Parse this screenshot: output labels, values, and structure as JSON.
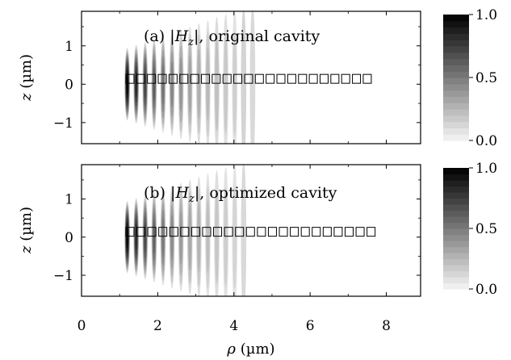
{
  "chart_data": [
    {
      "type": "heatmap",
      "title": "(a) |H_z|, original cavity",
      "title_parts": {
        "prefix": "(a) |",
        "var": "H",
        "sub": "z",
        "suffix": "|, original cavity"
      },
      "xlabel": "ρ (µm)",
      "ylabel": "z (µm)",
      "xlim": [
        0,
        8.9
      ],
      "ylim": [
        -1.55,
        1.9
      ],
      "x_ticks": [
        "0",
        "2",
        "4",
        "6",
        "8"
      ],
      "y_ticks": [
        "1",
        "0",
        "−1"
      ],
      "colorbar": {
        "min": 0.0,
        "max": 1.0,
        "levels": 20,
        "ticks": [
          "1.0",
          "0.5",
          "0.0"
        ],
        "colormap": "greys"
      },
      "field_peak_rho": 1.2,
      "field_extent_rho": 4.6,
      "hole_count": 23,
      "holes_start_rho": 1.27,
      "holes_end_rho": 7.5
    },
    {
      "type": "heatmap",
      "title": "(b) |H_z|, optimized cavity",
      "title_parts": {
        "prefix": "(b) |",
        "var": "H",
        "sub": "z",
        "suffix": "|, optimized cavity"
      },
      "xlabel": "ρ (µm)",
      "ylabel": "z (µm)",
      "xlim": [
        0,
        8.9
      ],
      "ylim": [
        -1.55,
        1.9
      ],
      "x_ticks": [
        "0",
        "2",
        "4",
        "6",
        "8"
      ],
      "y_ticks": [
        "1",
        "0",
        "−1"
      ],
      "colorbar": {
        "min": 0.0,
        "max": 1.0,
        "levels": 20,
        "ticks": [
          "1.0",
          "0.5",
          "0.0"
        ],
        "colormap": "greys"
      },
      "field_peak_rho": 1.2,
      "field_extent_rho": 4.4,
      "hole_count": 23,
      "holes_start_rho": 1.27,
      "holes_end_rho": 7.6
    }
  ],
  "x_axis": {
    "label": "ρ (µm)",
    "ticks": [
      "0",
      "2",
      "4",
      "6",
      "8"
    ]
  }
}
